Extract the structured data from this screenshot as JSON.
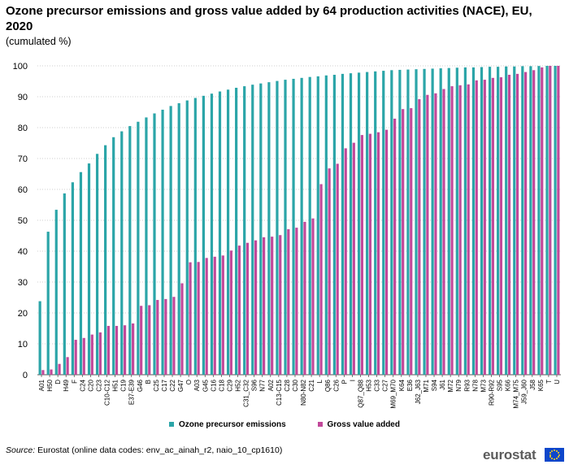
{
  "header": {
    "title": "Ozone precursor emissions and gross value added by 64 production activities (NACE), EU, 2020",
    "subtitle": "(cumulated  %)"
  },
  "footer": {
    "source_label": "Source:",
    "source_text": " Eurostat (online data codes: env_ac_ainah_r2, naio_10_cp1610)",
    "logo_text": "eurostat"
  },
  "colors": {
    "ozone": "#2ba5a8",
    "gva": "#c1489a",
    "grid": "#cfcfcf",
    "axis": "#555555"
  },
  "chart_data": {
    "type": "bar",
    "title": "Ozone precursor emissions and gross value added by 64 production activities (NACE), EU, 2020",
    "subtitle": "(cumulated  %)",
    "ylim": [
      0,
      100
    ],
    "yticks": [
      0,
      10,
      20,
      30,
      40,
      50,
      60,
      70,
      80,
      90,
      100
    ],
    "grid": true,
    "legend_position": "bottom",
    "categories": [
      "A01",
      "H50",
      "D",
      "H49",
      "F",
      "C24",
      "C20",
      "C23",
      "C10-C12",
      "H51",
      "C19",
      "E37-E39",
      "G46",
      "B",
      "C25",
      "C17",
      "C22",
      "G47",
      "O",
      "A03",
      "G45",
      "C16",
      "C18",
      "C29",
      "H52",
      "C31_C32",
      "S96",
      "N77",
      "A02",
      "C13-C15",
      "C28",
      "C30",
      "N80-N82",
      "C21",
      "L",
      "Q86",
      "C26",
      "P",
      "I",
      "Q87_Q88",
      "H53",
      "C33",
      "C27",
      "M69_M70",
      "K64",
      "E36",
      "J62_J63",
      "M71",
      "S94",
      "J61",
      "M72",
      "N79",
      "R93",
      "N78",
      "M73",
      "R90-R92",
      "S95",
      "K66",
      "M74_M75",
      "J59_J60",
      "J58",
      "K65",
      "T",
      "U"
    ],
    "series": [
      {
        "name": "Ozone precursor emissions",
        "values": [
          23.8,
          46.3,
          53.4,
          58.7,
          62.3,
          65.6,
          68.4,
          71.5,
          74.3,
          76.9,
          78.8,
          80.5,
          81.9,
          83.3,
          84.6,
          85.8,
          87.0,
          87.9,
          88.8,
          89.6,
          90.3,
          91.0,
          91.7,
          92.3,
          92.9,
          93.4,
          93.9,
          94.3,
          94.7,
          95.1,
          95.5,
          95.8,
          96.1,
          96.4,
          96.6,
          96.9,
          97.1,
          97.4,
          97.6,
          97.8,
          98.0,
          98.2,
          98.4,
          98.6,
          98.7,
          98.8,
          98.9,
          99.0,
          99.1,
          99.2,
          99.3,
          99.4,
          99.5,
          99.5,
          99.6,
          99.7,
          99.7,
          99.8,
          99.8,
          99.9,
          99.9,
          99.95,
          100,
          100
        ]
      },
      {
        "name": "Gross value added",
        "values": [
          1.5,
          1.7,
          3.5,
          5.7,
          11.3,
          11.9,
          13.0,
          13.7,
          15.8,
          15.8,
          16.0,
          16.6,
          22.3,
          22.5,
          24.2,
          24.5,
          25.2,
          29.6,
          36.4,
          36.5,
          37.8,
          38.2,
          38.6,
          40.2,
          41.8,
          42.7,
          43.5,
          44.5,
          44.7,
          45.2,
          47.1,
          47.6,
          49.5,
          50.6,
          61.7,
          66.8,
          68.3,
          73.3,
          75.1,
          77.6,
          78.0,
          78.5,
          79.3,
          82.9,
          86.0,
          86.3,
          89.2,
          90.6,
          91.1,
          92.5,
          93.4,
          93.7,
          94.0,
          95.3,
          95.5,
          96.1,
          96.3,
          97.1,
          97.4,
          98.0,
          98.6,
          99.5,
          100,
          100
        ]
      }
    ]
  }
}
